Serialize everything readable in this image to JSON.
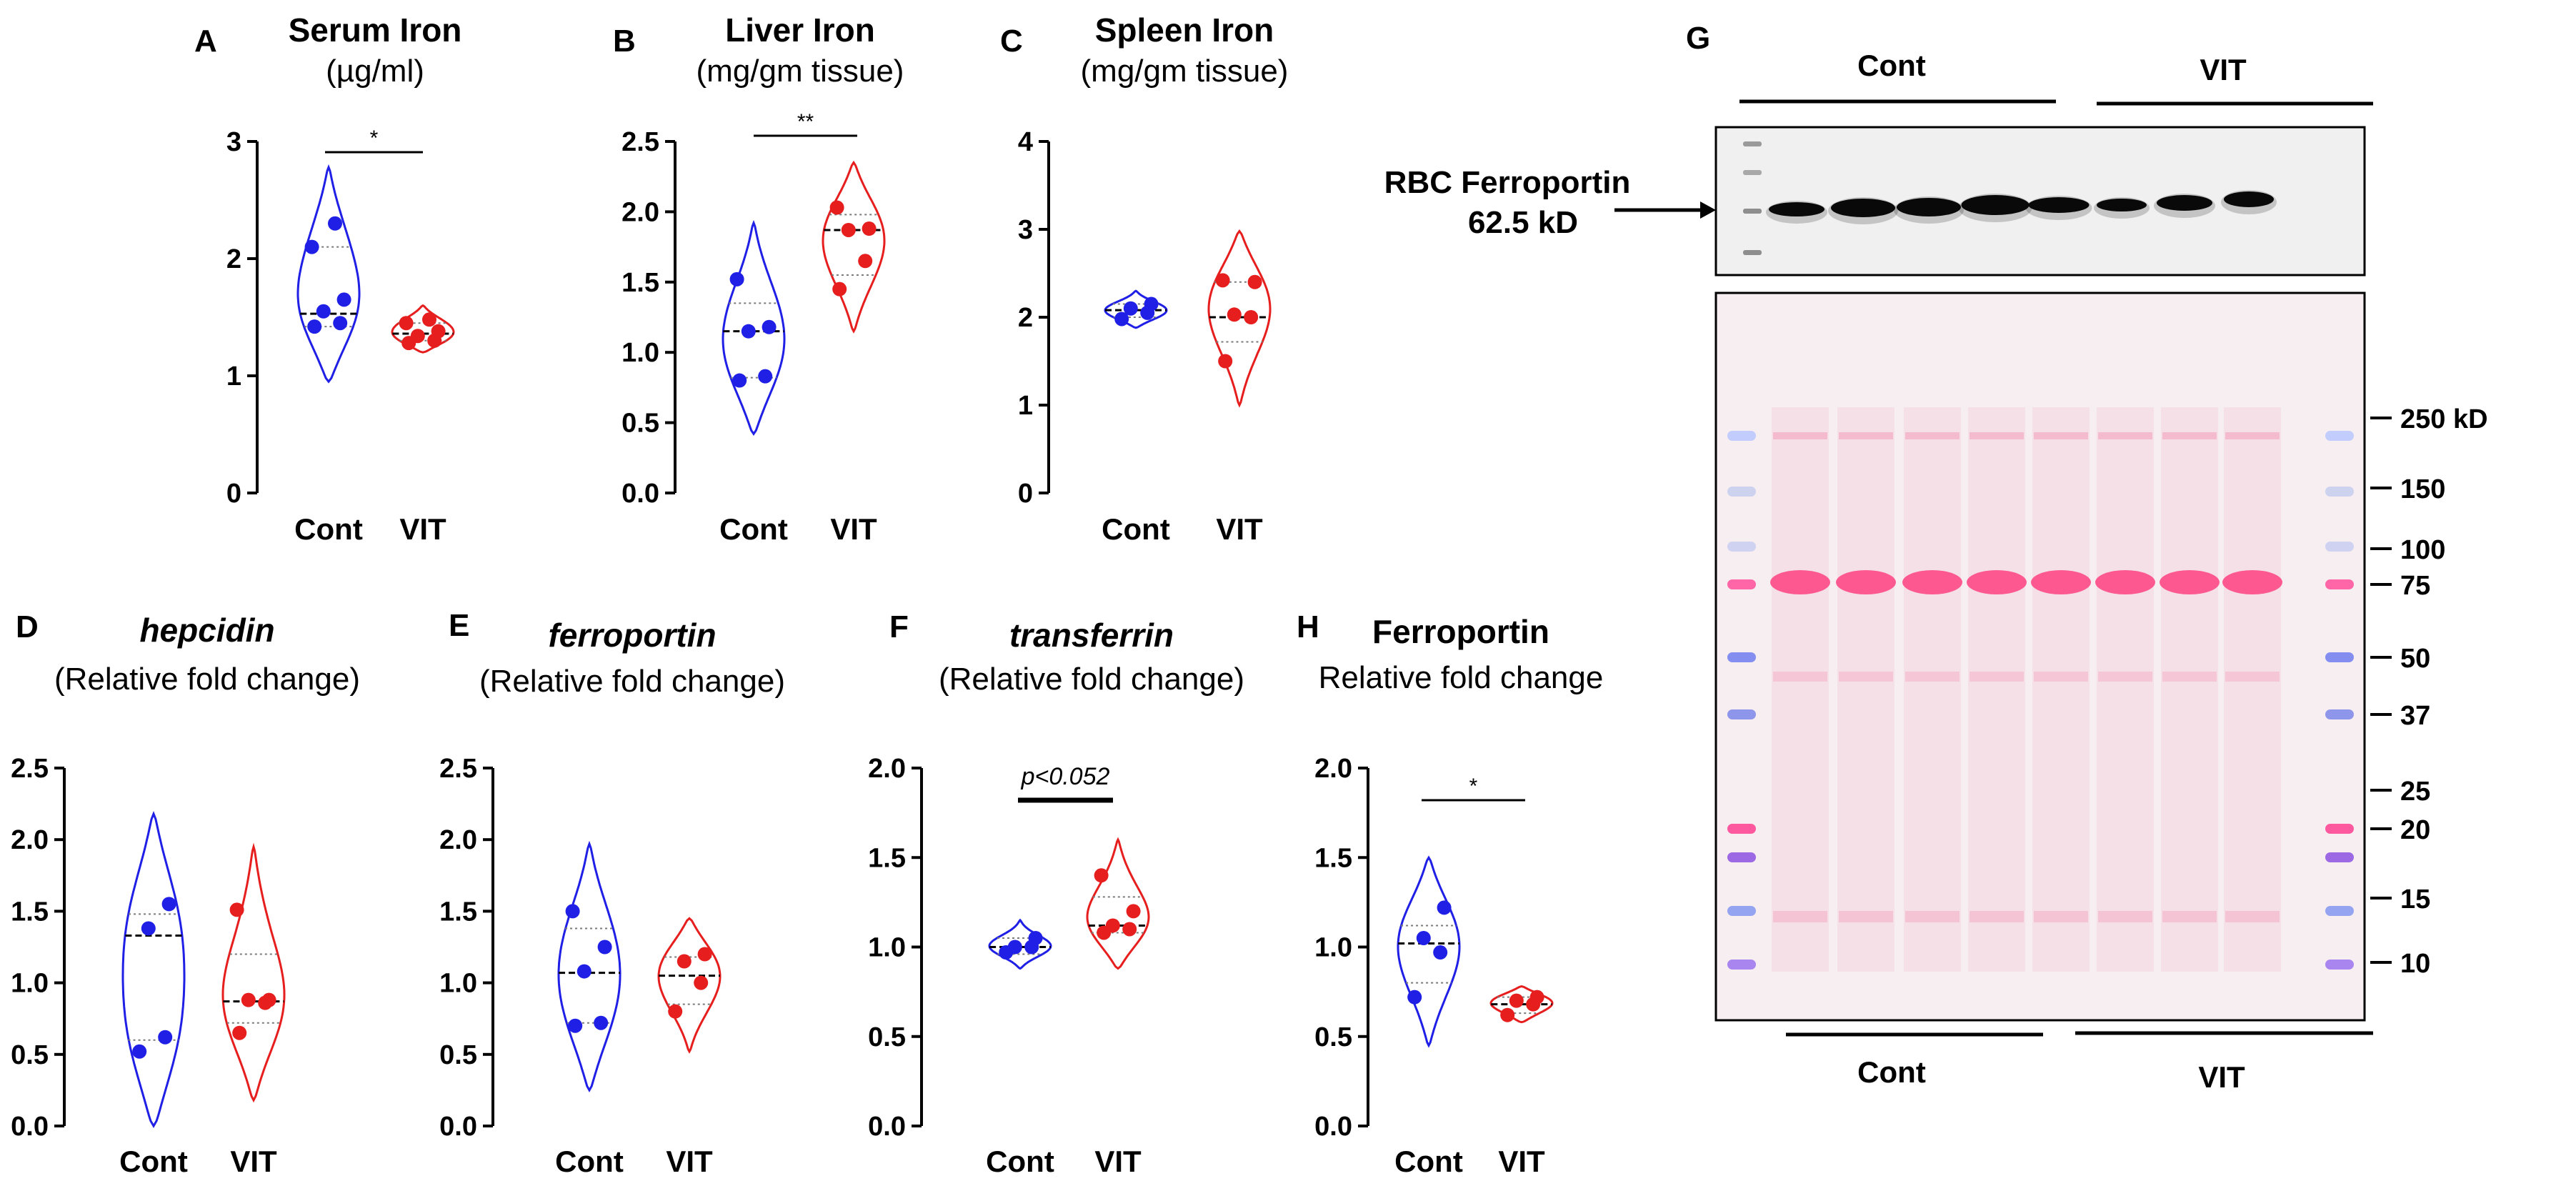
{
  "colors": {
    "cont": "#1f1fe6",
    "vit": "#e61e1e",
    "axis": "#000000",
    "median": "#000000",
    "quartile": "#7a7a7a"
  },
  "chart_data": [
    {
      "id": "A",
      "type": "violin",
      "panel_letter": "A",
      "title": "Serum Iron",
      "title_italic": false,
      "subtitle": "(µg/ml)",
      "categories": [
        "Cont",
        "VIT"
      ],
      "ylim": [
        0,
        3
      ],
      "yticks": [
        "0",
        "1",
        "2",
        "3"
      ],
      "sig": "*",
      "series": [
        {
          "name": "Cont",
          "values": [
            1.42,
            1.45,
            1.55,
            1.65,
            2.1,
            2.3
          ],
          "min": 0.95,
          "max": 2.78,
          "median": 1.53,
          "q1": 1.42,
          "q3": 2.1
        },
        {
          "name": "VIT",
          "values": [
            1.28,
            1.3,
            1.34,
            1.38,
            1.45,
            1.48
          ],
          "min": 1.2,
          "max": 1.6,
          "median": 1.36,
          "q1": 1.3,
          "q3": 1.45
        }
      ]
    },
    {
      "id": "B",
      "type": "violin",
      "panel_letter": "B",
      "title": "Liver Iron",
      "title_italic": false,
      "subtitle": "(mg/gm tissue)",
      "categories": [
        "Cont",
        "VIT"
      ],
      "ylim": [
        0,
        2.5
      ],
      "yticks": [
        "0.0",
        "0.5",
        "1.0",
        "1.5",
        "2.0",
        "2.5"
      ],
      "sig": "**",
      "series": [
        {
          "name": "Cont",
          "values": [
            0.8,
            0.83,
            1.15,
            1.18,
            1.52
          ],
          "min": 0.42,
          "max": 1.92,
          "median": 1.15,
          "q1": 0.82,
          "q3": 1.35
        },
        {
          "name": "VIT",
          "values": [
            1.45,
            1.65,
            1.87,
            1.88,
            2.03
          ],
          "min": 1.15,
          "max": 2.35,
          "median": 1.87,
          "q1": 1.55,
          "q3": 1.98
        }
      ]
    },
    {
      "id": "C",
      "type": "violin",
      "panel_letter": "C",
      "title": "Spleen Iron",
      "title_italic": false,
      "subtitle": "(mg/gm tissue)",
      "categories": [
        "Cont",
        "VIT"
      ],
      "ylim": [
        0,
        4
      ],
      "yticks": [
        "0",
        "1",
        "2",
        "3",
        "4"
      ],
      "sig": "",
      "series": [
        {
          "name": "Cont",
          "values": [
            1.98,
            2.05,
            2.1,
            2.15
          ],
          "min": 1.88,
          "max": 2.3,
          "median": 2.08,
          "q1": 2.0,
          "q3": 2.15
        },
        {
          "name": "VIT",
          "values": [
            1.5,
            2.0,
            2.03,
            2.4,
            2.42
          ],
          "min": 1.0,
          "max": 2.98,
          "median": 2.0,
          "q1": 1.72,
          "q3": 2.4
        }
      ]
    },
    {
      "id": "D",
      "type": "violin",
      "panel_letter": "D",
      "title": "hepcidin",
      "title_italic": true,
      "subtitle": "(Relative fold change)",
      "categories": [
        "Cont",
        "VIT"
      ],
      "ylim": [
        0,
        2.5
      ],
      "yticks": [
        "0.0",
        "0.5",
        "1.0",
        "1.5",
        "2.0",
        "2.5"
      ],
      "sig": "",
      "series": [
        {
          "name": "Cont",
          "values": [
            0.52,
            0.62,
            1.38,
            1.55
          ],
          "min": 0.0,
          "max": 2.18,
          "median": 1.33,
          "q1": 0.6,
          "q3": 1.48
        },
        {
          "name": "VIT",
          "values": [
            0.65,
            0.86,
            0.88,
            0.88,
            1.51
          ],
          "min": 0.18,
          "max": 1.95,
          "median": 0.87,
          "q1": 0.72,
          "q3": 1.2
        }
      ]
    },
    {
      "id": "E",
      "type": "violin",
      "panel_letter": "E",
      "title": "ferroportin",
      "title_italic": true,
      "subtitle": "(Relative fold change)",
      "categories": [
        "Cont",
        "VIT"
      ],
      "ylim": [
        0,
        2.5
      ],
      "yticks": [
        "0.0",
        "0.5",
        "1.0",
        "1.5",
        "2.0",
        "2.5"
      ],
      "sig": "",
      "series": [
        {
          "name": "Cont",
          "values": [
            0.7,
            0.72,
            1.08,
            1.25,
            1.5
          ],
          "min": 0.25,
          "max": 1.97,
          "median": 1.07,
          "q1": 0.72,
          "q3": 1.38
        },
        {
          "name": "VIT",
          "values": [
            0.8,
            1.0,
            1.15,
            1.2
          ],
          "min": 0.52,
          "max": 1.45,
          "median": 1.05,
          "q1": 0.85,
          "q3": 1.18
        }
      ]
    },
    {
      "id": "F",
      "type": "violin",
      "panel_letter": "F",
      "title": "transferrin",
      "title_italic": true,
      "subtitle": "(Relative fold change)",
      "categories": [
        "Cont",
        "VIT"
      ],
      "ylim": [
        0,
        2
      ],
      "yticks": [
        "0.0",
        "0.5",
        "1.0",
        "1.5",
        "2.0"
      ],
      "sig": "p<0.052",
      "sig_italic": true,
      "series": [
        {
          "name": "Cont",
          "values": [
            0.97,
            1.0,
            1.0,
            1.05
          ],
          "min": 0.88,
          "max": 1.15,
          "median": 1.0,
          "q1": 0.96,
          "q3": 1.05
        },
        {
          "name": "VIT",
          "values": [
            1.08,
            1.1,
            1.12,
            1.2,
            1.4
          ],
          "min": 0.88,
          "max": 1.6,
          "median": 1.12,
          "q1": 1.08,
          "q3": 1.28
        }
      ]
    },
    {
      "id": "H",
      "type": "violin",
      "panel_letter": "H",
      "title": "Ferroportin",
      "title_italic": false,
      "subtitle": "Relative fold change",
      "categories": [
        "Cont",
        "VIT"
      ],
      "ylim": [
        0,
        2
      ],
      "yticks": [
        "0.0",
        "0.5",
        "1.0",
        "1.5",
        "2.0"
      ],
      "sig": "*",
      "series": [
        {
          "name": "Cont",
          "values": [
            0.72,
            0.97,
            1.05,
            1.22
          ],
          "min": 0.45,
          "max": 1.5,
          "median": 1.02,
          "q1": 0.8,
          "q3": 1.12
        },
        {
          "name": "VIT",
          "values": [
            0.62,
            0.68,
            0.7,
            0.72
          ],
          "min": 0.58,
          "max": 0.78,
          "median": 0.68,
          "q1": 0.63,
          "q3": 0.72
        }
      ]
    }
  ],
  "blot": {
    "panel_letter": "G",
    "group_top_cont": "Cont",
    "group_top_vit": "VIT",
    "group_bottom_cont": "Cont",
    "group_bottom_vit": "VIT",
    "target_label_line1": "RBC Ferroportin",
    "target_label_line2": "62.5 kD",
    "markers": [
      "250 kD",
      "150",
      "100",
      "75",
      "50",
      "37",
      "25",
      "20",
      "15",
      "10"
    ]
  }
}
